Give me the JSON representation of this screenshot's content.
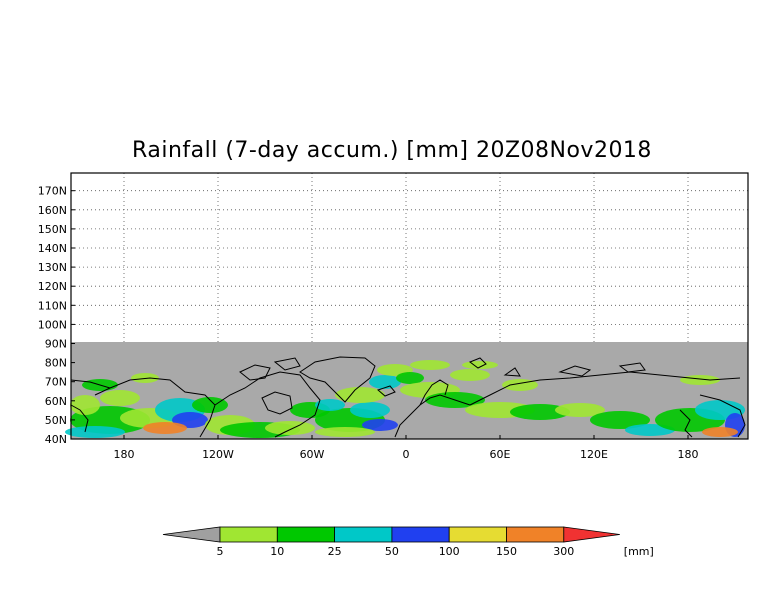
{
  "title": "Rainfall (7-day accum.) [mm] 20Z08Nov2018",
  "lat_labels": [
    "170N",
    "160N",
    "150N",
    "140N",
    "130N",
    "120N",
    "110N",
    "100N",
    "90N",
    "80N",
    "70N",
    "60N",
    "50N",
    "40N"
  ],
  "lon_labels": [
    "180",
    "120W",
    "60W",
    "0",
    "60E",
    "120E",
    "180"
  ],
  "legend": {
    "unit": "[mm]",
    "thresholds": [
      "5",
      "10",
      "25",
      "50",
      "100",
      "150",
      "300"
    ],
    "colors": [
      "#a0a0a0",
      "#a0e632",
      "#00c800",
      "#00c8c8",
      "#2040f0",
      "#e6dc32",
      "#f08228",
      "#f03232"
    ]
  },
  "map": {
    "no_data_color": "#a9a9a9",
    "coast_color": "#000000"
  }
}
